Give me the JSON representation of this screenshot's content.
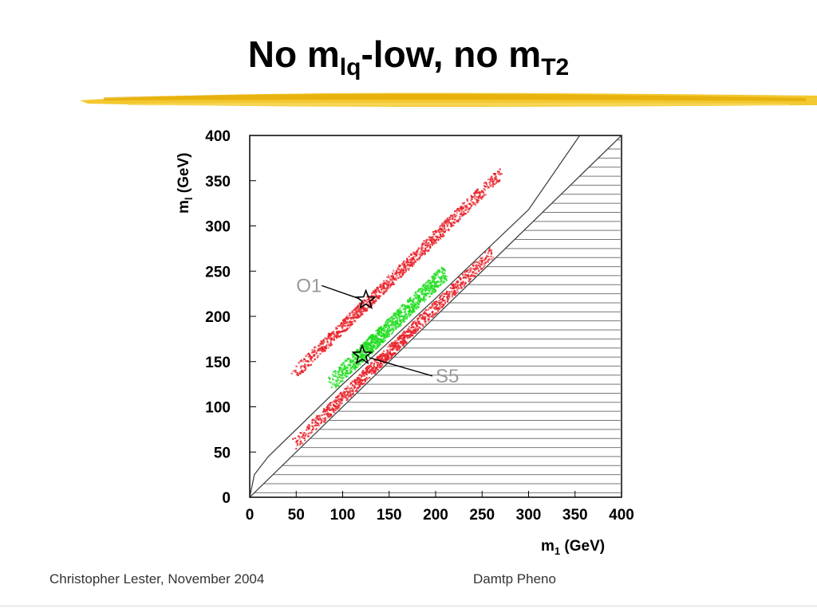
{
  "slide": {
    "title_parts": [
      "No m",
      "lq",
      "-low, no m",
      "T2"
    ],
    "footer_left": "Christopher Lester, November 2004",
    "footer_right": "Damtp Pheno"
  },
  "colors": {
    "accent_rule": "#f2c21a",
    "band_red": "#e8222a",
    "band_green": "#22dd22",
    "hatch": "#777777"
  },
  "chart_data": {
    "type": "scatter",
    "title": "",
    "xlabel_parts": [
      "m",
      "1",
      " (GeV)"
    ],
    "ylabel_parts": [
      "m",
      "l",
      " (GeV)"
    ],
    "xlim": [
      0,
      400
    ],
    "ylim": [
      0,
      400
    ],
    "xticks": [
      0,
      50,
      100,
      150,
      200,
      250,
      300,
      350,
      400
    ],
    "yticks": [
      0,
      50,
      100,
      150,
      200,
      250,
      300,
      350,
      400
    ],
    "hatched_region": "m_l < m_1",
    "bands": [
      {
        "color": "red",
        "x_start": 45,
        "x_end": 270,
        "offset": 90
      },
      {
        "color": "green",
        "x_start": 85,
        "x_end": 210,
        "offset": 40
      },
      {
        "color": "red",
        "x_start": 45,
        "x_end": 260,
        "offset": 12
      }
    ],
    "curves": [
      {
        "type": "line",
        "desc": "m_l = m_1",
        "points": [
          [
            0,
            0
          ],
          [
            400,
            400
          ]
        ]
      },
      {
        "type": "curve",
        "points": [
          [
            0,
            0
          ],
          [
            5,
            25
          ],
          [
            20,
            45
          ],
          [
            50,
            75
          ],
          [
            100,
            125
          ],
          [
            150,
            172
          ],
          [
            200,
            220
          ],
          [
            300,
            318
          ],
          [
            355,
            400
          ]
        ]
      }
    ],
    "markers": [
      {
        "label": "O1",
        "x": 125,
        "y": 218,
        "label_x": 50,
        "label_y": 227
      },
      {
        "label": "S5",
        "x": 121,
        "y": 157,
        "label_x": 200,
        "label_y": 127
      }
    ]
  }
}
